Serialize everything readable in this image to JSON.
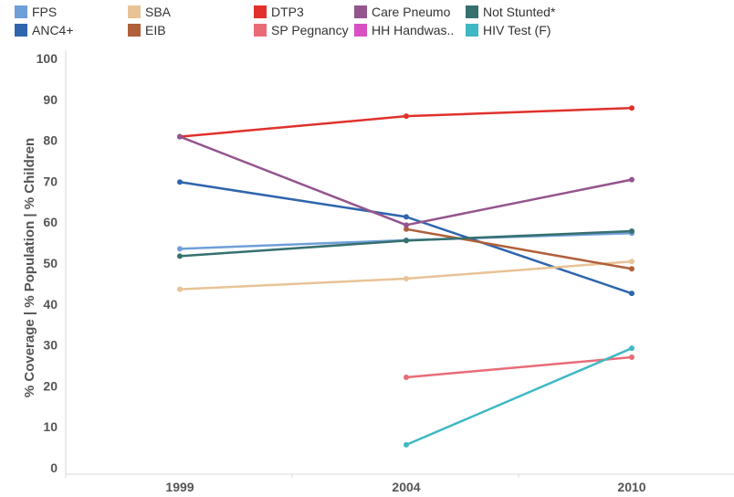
{
  "chart_data": {
    "type": "line",
    "title": "",
    "xlabel": "",
    "ylabel": "% Coverage | % Population | % Children",
    "ylim": [
      0,
      100
    ],
    "yticks": [
      0,
      10,
      20,
      30,
      40,
      50,
      60,
      70,
      80,
      90,
      100
    ],
    "x": [
      1999,
      2004,
      2010
    ],
    "grid": false,
    "legend_position": "top",
    "series": [
      {
        "name": "FPS",
        "color": "#6f9fd8",
        "values": [
          53.5,
          55.6,
          57.3
        ]
      },
      {
        "name": "ANC4+",
        "color": "#2f65ad",
        "values": [
          69.8,
          61.3,
          42.6
        ]
      },
      {
        "name": "SBA",
        "color": "#e8c396",
        "values": [
          43.6,
          46.2,
          50.4
        ]
      },
      {
        "name": "EIB",
        "color": "#b0603a",
        "values": [
          null,
          58.3,
          48.6
        ]
      },
      {
        "name": "DTP3",
        "color": "#e0312c",
        "values": [
          80.9,
          85.9,
          87.9
        ]
      },
      {
        "name": "SP Pegnancy",
        "color": "#e86c77",
        "values": [
          null,
          22.1,
          27.0
        ]
      },
      {
        "name": "Care Pneumo",
        "color": "#94558e",
        "values": [
          80.9,
          59.3,
          70.4
        ]
      },
      {
        "name": "HH Handwas..",
        "color": "#d94fc4",
        "values": [
          null,
          null,
          null
        ]
      },
      {
        "name": "Not Stunted*",
        "color": "#36706f",
        "values": [
          51.7,
          55.5,
          57.8
        ]
      },
      {
        "name": "HIV Test (F)",
        "color": "#3fb8c4",
        "values": [
          null,
          5.6,
          29.2
        ]
      }
    ]
  }
}
